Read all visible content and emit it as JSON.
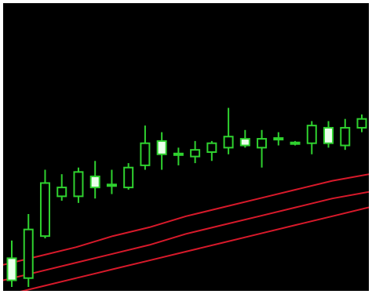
{
  "chart_data": {
    "type": "candlestick",
    "title": "",
    "xlabel": "",
    "ylabel": "",
    "ylim": [
      0,
      100
    ],
    "grid": false,
    "legend": "none",
    "axes_visible": false,
    "colors": {
      "background": "#000000",
      "frame": "#ffffff",
      "candle_outline": "#2fd12f",
      "candle_bull_body": "#000000",
      "candle_bear_body": "#eaffea",
      "band_lines": "#d7192a"
    },
    "candles": [
      {
        "open": 13,
        "close": 3,
        "high": 21,
        "low": 0
      },
      {
        "open": 4,
        "close": 26,
        "high": 33,
        "low": 0
      },
      {
        "open": 23,
        "close": 47,
        "high": 53,
        "low": 22
      },
      {
        "open": 41,
        "close": 45,
        "high": 51,
        "low": 39
      },
      {
        "open": 41,
        "close": 52,
        "high": 54,
        "low": 38
      },
      {
        "open": 50,
        "close": 45,
        "high": 57,
        "low": 40
      },
      {
        "open": 46,
        "close": 46,
        "high": 53,
        "low": 42
      },
      {
        "open": 45,
        "close": 54,
        "high": 56,
        "low": 44
      },
      {
        "open": 55,
        "close": 65,
        "high": 73,
        "low": 53
      },
      {
        "open": 66,
        "close": 60,
        "high": 70,
        "low": 53
      },
      {
        "open": 60,
        "close": 60,
        "high": 63,
        "low": 55
      },
      {
        "open": 59,
        "close": 62,
        "high": 66,
        "low": 56
      },
      {
        "open": 61,
        "close": 65,
        "high": 66,
        "low": 57
      },
      {
        "open": 63,
        "close": 68,
        "high": 81,
        "low": 60
      },
      {
        "open": 67,
        "close": 64,
        "high": 71,
        "low": 63
      },
      {
        "open": 63,
        "close": 67,
        "high": 71,
        "low": 54
      },
      {
        "open": 67,
        "close": 67,
        "high": 70,
        "low": 64
      },
      {
        "open": 65,
        "close": 65,
        "high": 66,
        "low": 64
      },
      {
        "open": 65,
        "close": 73,
        "high": 75,
        "low": 60
      },
      {
        "open": 72,
        "close": 65,
        "high": 75,
        "low": 63
      },
      {
        "open": 64,
        "close": 72,
        "high": 76,
        "low": 62
      },
      {
        "open": 72,
        "close": 76,
        "high": 78,
        "low": 70
      }
    ],
    "bands": [
      {
        "values": [
          10,
          14,
          18,
          23,
          27,
          32,
          36,
          40,
          44,
          48,
          51
        ]
      },
      {
        "values": [
          3,
          7,
          11,
          15,
          19,
          24,
          28,
          32,
          36,
          40,
          43
        ]
      },
      {
        "values": [
          -4,
          0,
          4,
          8,
          12,
          16,
          20,
          24,
          28,
          32,
          36
        ]
      }
    ]
  }
}
